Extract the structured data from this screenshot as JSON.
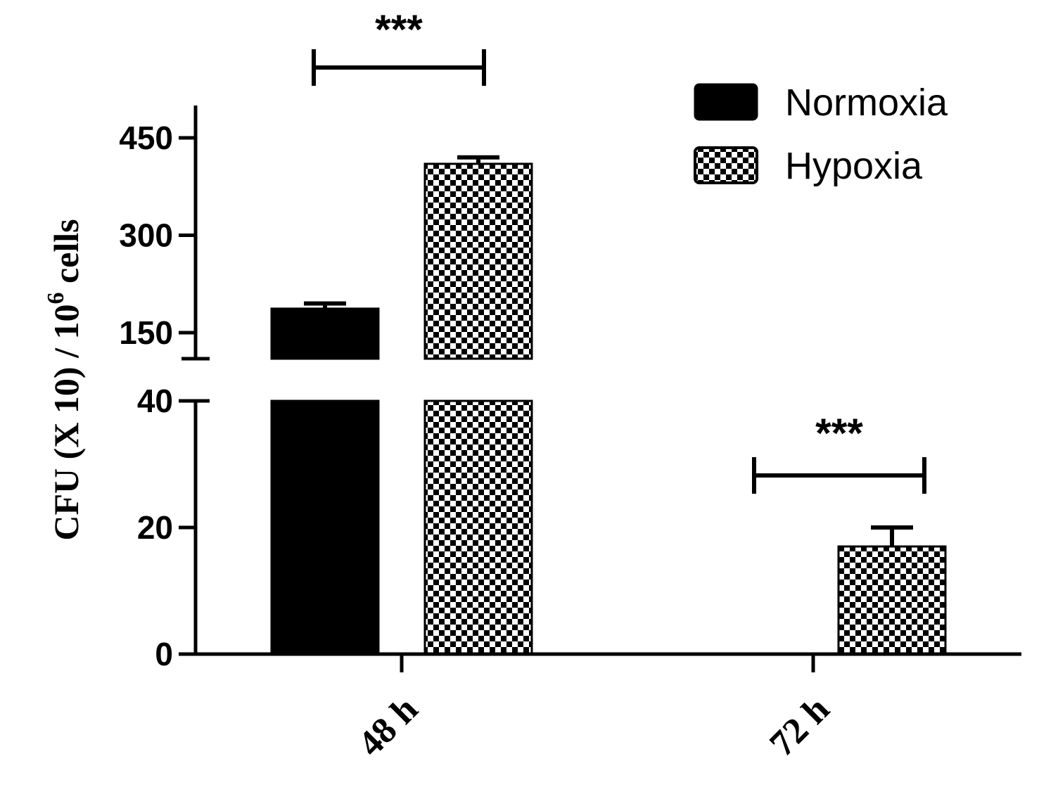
{
  "chart_data": {
    "type": "bar",
    "categories": [
      "48 h",
      "72 h"
    ],
    "series": [
      {
        "name": "Normoxia",
        "values": [
          187,
          0
        ],
        "errors": [
          8,
          0
        ],
        "color": "#000000",
        "pattern": "solid"
      },
      {
        "name": "Hypoxia",
        "values": [
          410,
          17
        ],
        "errors": [
          10,
          3
        ],
        "color": "#000000",
        "pattern": "checker"
      }
    ],
    "ylabel": "CFU (X 10) / 10",
    "ylabel_superscript": "6",
    "ylabel_suffix": " cells",
    "y_axis_break": {
      "lower_segment": {
        "range": [
          0,
          40
        ],
        "ticks": [
          0,
          20,
          40
        ]
      },
      "upper_segment": {
        "range": [
          110,
          460
        ],
        "ticks": [
          150,
          300,
          450
        ]
      }
    },
    "significance": [
      {
        "category": "48 h",
        "label": "***"
      },
      {
        "category": "72 h",
        "label": "***"
      }
    ],
    "legend": {
      "position": "top-right",
      "entries": [
        "Normoxia",
        "Hypoxia"
      ]
    },
    "grid": false
  }
}
